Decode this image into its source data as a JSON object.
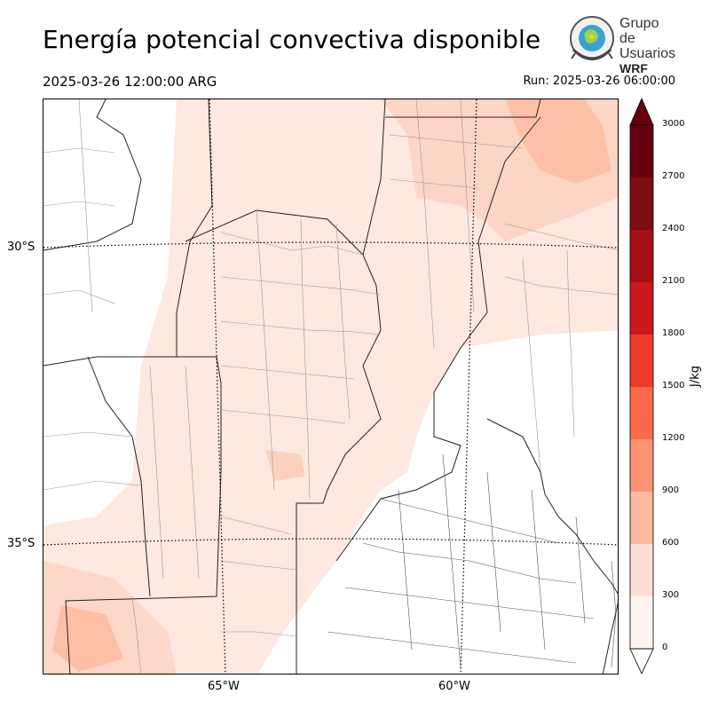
{
  "title": "Energía potencial convectiva disponible",
  "valid_time": "2025-03-26 12:00:00 ARG",
  "run_time": "Run: 2025-03-26 06:00:00",
  "logo": {
    "line1": "Grupo de",
    "line2": "Usuarios",
    "line3": "WRF"
  },
  "map": {
    "latitudes": [
      {
        "label": "30°S",
        "value": -30
      },
      {
        "label": "35°S",
        "value": -35
      }
    ],
    "longitudes": [
      {
        "label": "65°W",
        "value": -65
      },
      {
        "label": "60°W",
        "value": -60
      }
    ]
  },
  "colorbar": {
    "unit": "J/kg",
    "levels": [
      0,
      300,
      600,
      900,
      1200,
      1500,
      1800,
      2100,
      2400,
      2700,
      3000
    ],
    "tick_labels": [
      "0",
      "300",
      "600",
      "900",
      "1200",
      "1500",
      "1800",
      "2100",
      "2400",
      "2700",
      "3000"
    ],
    "colors": [
      "#fff5f0",
      "#fee0d2",
      "#fcbba1",
      "#fc9272",
      "#fb6a4a",
      "#ef3b2c",
      "#cb181d",
      "#a50f15",
      "#7f0c13",
      "#67000d"
    ]
  }
}
